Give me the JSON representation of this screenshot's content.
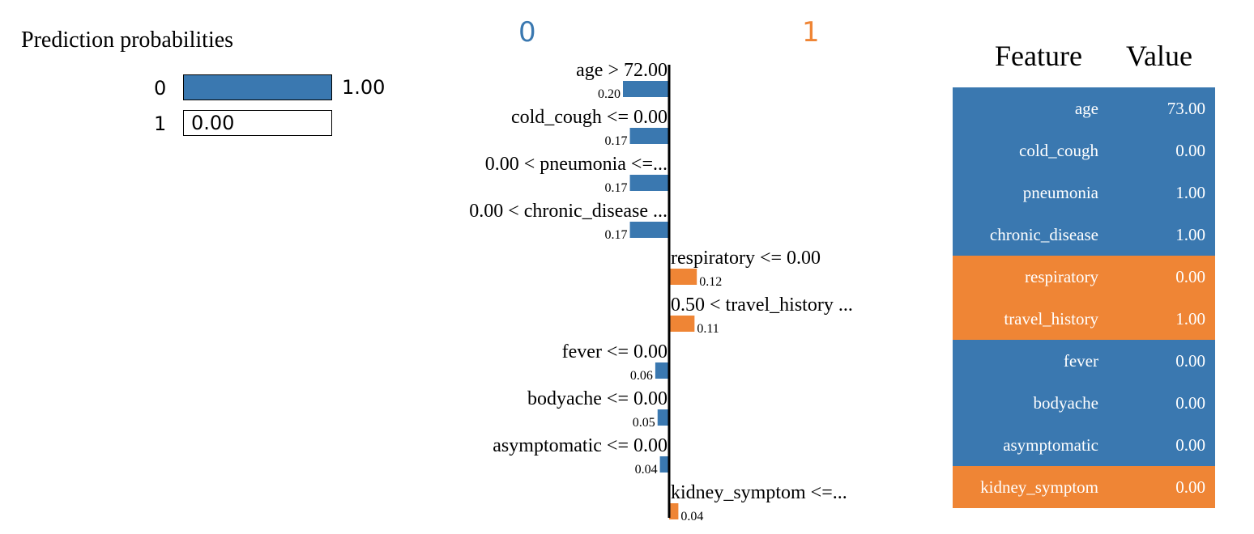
{
  "colors": {
    "class_0": "#3a78b0",
    "class_1": "#ef8535",
    "text": "#000000",
    "table_text": "#ffffff"
  },
  "prediction_probabilities": {
    "title": "Prediction probabilities",
    "rows": [
      {
        "label": "0",
        "probability": 1.0,
        "display": "1.00",
        "color": "#3a78b0"
      },
      {
        "label": "1",
        "probability": 0.0,
        "display": "0.00",
        "color": "#ef8535"
      }
    ]
  },
  "chart_data": {
    "type": "bar",
    "orientation": "horizontal",
    "class_headers": [
      "0",
      "1"
    ],
    "xlim": [
      -0.2,
      0.2
    ],
    "categories": [
      "age > 72.00",
      "cold_cough <= 0.00",
      "0.00 < pneumonia <=...",
      "0.00 < chronic_disease ...",
      "respiratory <= 0.00",
      "0.50 < travel_history ...",
      "fever <= 0.00",
      "bodyache <= 0.00",
      "asymptomatic <= 0.00",
      "kidney_symptom <=..."
    ],
    "values": [
      0.2,
      0.17,
      0.17,
      0.17,
      0.12,
      0.11,
      0.06,
      0.05,
      0.04,
      0.04
    ],
    "value_labels": [
      "0.20",
      "0.17",
      "0.17",
      "0.17",
      "0.12",
      "0.11",
      "0.06",
      "0.05",
      "0.04",
      "0.04"
    ],
    "classes": [
      0,
      0,
      0,
      0,
      1,
      1,
      0,
      0,
      0,
      1
    ]
  },
  "feature_table": {
    "headers": {
      "feature": "Feature",
      "value": "Value"
    },
    "rows": [
      {
        "feature": "age",
        "value": "73.00",
        "class": 0
      },
      {
        "feature": "cold_cough",
        "value": "0.00",
        "class": 0
      },
      {
        "feature": "pneumonia",
        "value": "1.00",
        "class": 0
      },
      {
        "feature": "chronic_disease",
        "value": "1.00",
        "class": 0
      },
      {
        "feature": "respiratory",
        "value": "0.00",
        "class": 1
      },
      {
        "feature": "travel_history",
        "value": "1.00",
        "class": 1
      },
      {
        "feature": "fever",
        "value": "0.00",
        "class": 0
      },
      {
        "feature": "bodyache",
        "value": "0.00",
        "class": 0
      },
      {
        "feature": "asymptomatic",
        "value": "0.00",
        "class": 0
      },
      {
        "feature": "kidney_symptom",
        "value": "0.00",
        "class": 1
      }
    ]
  }
}
